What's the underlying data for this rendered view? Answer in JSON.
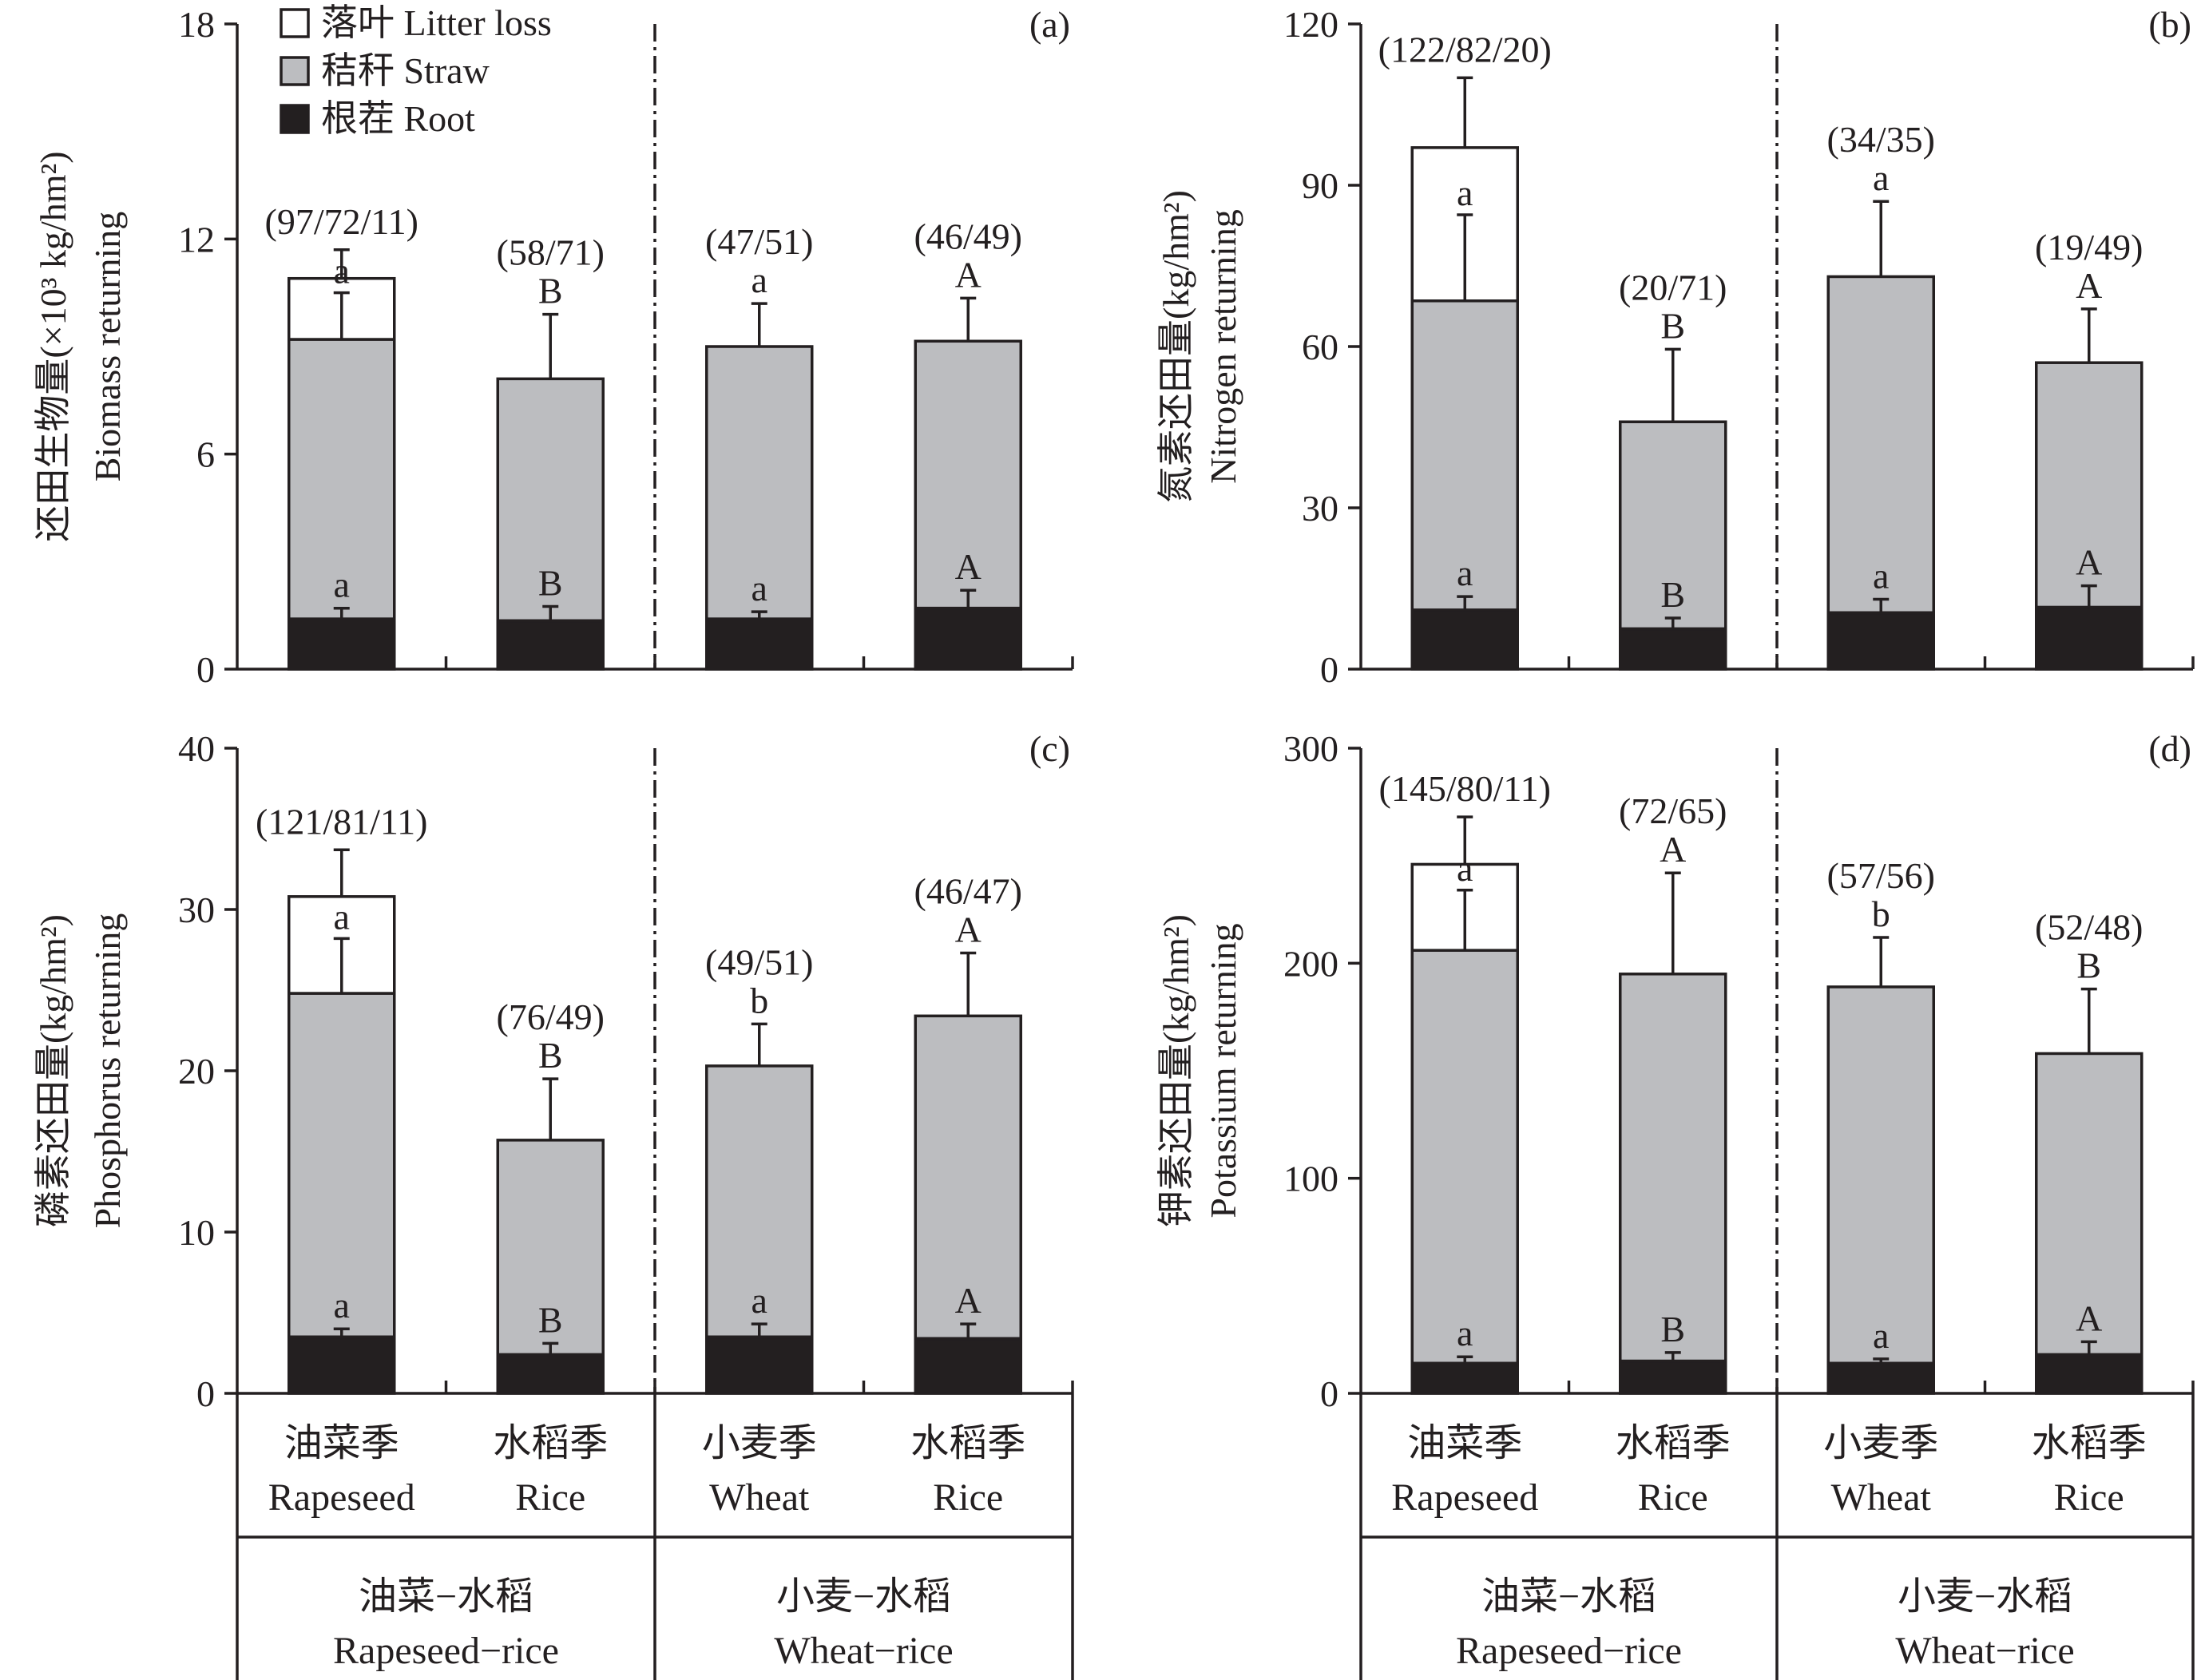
{
  "legend": [
    {
      "key": "litter",
      "label": "落叶 Litter loss",
      "color": "#ffffff"
    },
    {
      "key": "straw",
      "label": "秸秆 Straw",
      "color": "#bcbdc0"
    },
    {
      "key": "root",
      "label": "根茬 Root",
      "color": "#231f20"
    }
  ],
  "categories": [
    {
      "zh": "油菜季",
      "en": "Rapeseed"
    },
    {
      "zh": "水稻季",
      "en": "Rice"
    },
    {
      "zh": "小麦季",
      "en": "Wheat"
    },
    {
      "zh": "水稻季",
      "en": "Rice"
    }
  ],
  "groups": [
    {
      "zh": "油菜−水稻",
      "en": "Rapeseed−rice"
    },
    {
      "zh": "小麦−水稻",
      "en": "Wheat−rice"
    }
  ],
  "chart_data": [
    {
      "panel": "(a)",
      "type": "bar",
      "stacked": true,
      "ylabel_zh": "还田生物量",
      "ylabel_unit": "(×10³ kg/hm²)",
      "ylabel_en": "Biomass returning",
      "ylim": [
        0,
        18
      ],
      "yticks": [
        0,
        6,
        12,
        18
      ],
      "series": [
        {
          "name": "根茬 Root",
          "values": [
            1.4,
            1.35,
            1.4,
            1.7
          ],
          "errors": [
            0.3,
            0.4,
            0.2,
            0.5
          ]
        },
        {
          "name": "秸秆 Straw",
          "values": [
            7.8,
            6.75,
            7.6,
            7.45
          ]
        },
        {
          "name": "落叶 Litter loss",
          "values": [
            1.7,
            0,
            0,
            0
          ]
        }
      ],
      "straw_top_errors": [
        1.3,
        0,
        0,
        0
      ],
      "total_errors": [
        0.8,
        1.8,
        1.2,
        1.2
      ],
      "root_letters": [
        "a",
        "B",
        "a",
        "A"
      ],
      "straw_letters": [
        "a",
        "",
        "",
        ""
      ],
      "total_letters": [
        "",
        "B",
        "a",
        "A"
      ],
      "ratios": [
        "(97/72/11)",
        "(58/71)",
        "(47/51)",
        "(46/49)"
      ]
    },
    {
      "panel": "(b)",
      "type": "bar",
      "stacked": true,
      "ylabel_zh": "氮素还田量",
      "ylabel_unit": "(kg/hm²)",
      "ylabel_en": "Nitrogen returning",
      "ylim": [
        0,
        120
      ],
      "yticks": [
        0,
        30,
        60,
        90,
        120
      ],
      "series": [
        {
          "name": "根茬 Root",
          "values": [
            11,
            7.5,
            10.5,
            11.5
          ],
          "errors": [
            2.5,
            2,
            2.5,
            4
          ]
        },
        {
          "name": "秸秆 Straw",
          "values": [
            57.5,
            38.5,
            62.5,
            45.5
          ]
        },
        {
          "name": "落叶 Litter loss",
          "values": [
            28.5,
            0,
            0,
            0
          ]
        }
      ],
      "straw_top_errors": [
        16,
        0,
        0,
        0
      ],
      "total_errors": [
        13,
        13.5,
        14,
        10
      ],
      "root_letters": [
        "a",
        "B",
        "a",
        "A"
      ],
      "straw_letters": [
        "a",
        "",
        "",
        ""
      ],
      "total_letters": [
        "",
        "B",
        "a",
        "A"
      ],
      "ratios": [
        "(122/82/20)",
        "(20/71)",
        "(34/35)",
        "(19/49)"
      ]
    },
    {
      "panel": "(c)",
      "type": "bar",
      "stacked": true,
      "ylabel_zh": "磷素还田量",
      "ylabel_unit": "(kg/hm²)",
      "ylabel_en": "Phosphorus returning",
      "ylim": [
        0,
        40
      ],
      "yticks": [
        0,
        10,
        20,
        30,
        40
      ],
      "series": [
        {
          "name": "根茬 Root",
          "values": [
            3.5,
            2.4,
            3.5,
            3.4
          ],
          "errors": [
            0.5,
            0.7,
            0.8,
            0.9
          ]
        },
        {
          "name": "秸秆 Straw",
          "values": [
            21.3,
            13.3,
            16.8,
            20
          ]
        },
        {
          "name": "落叶 Litter loss",
          "values": [
            6,
            0,
            0,
            0
          ]
        }
      ],
      "straw_top_errors": [
        3.4,
        0,
        0,
        0
      ],
      "total_errors": [
        2.9,
        3.8,
        2.6,
        3.9
      ],
      "root_letters": [
        "a",
        "B",
        "a",
        "A"
      ],
      "straw_letters": [
        "a",
        "",
        "",
        ""
      ],
      "total_letters": [
        "",
        "B",
        "b",
        "A"
      ],
      "ratios": [
        "(121/81/11)",
        "(76/49)",
        "(49/51)",
        "(46/47)"
      ]
    },
    {
      "panel": "(d)",
      "type": "bar",
      "stacked": true,
      "ylabel_zh": "钾素还田量",
      "ylabel_unit": "(kg/hm²)",
      "ylabel_en": "Potassium returning",
      "ylim": [
        0,
        300
      ],
      "yticks": [
        0,
        100,
        200,
        300
      ],
      "series": [
        {
          "name": "根茬 Root",
          "values": [
            14,
            15,
            14,
            18
          ],
          "errors": [
            3,
            4,
            2,
            6
          ]
        },
        {
          "name": "秸秆 Straw",
          "values": [
            192,
            180,
            175,
            140
          ]
        },
        {
          "name": "落叶 Litter loss",
          "values": [
            40,
            0,
            0,
            0
          ]
        }
      ],
      "straw_top_errors": [
        28,
        0,
        0,
        0
      ],
      "total_errors": [
        22,
        47,
        23,
        30
      ],
      "root_letters": [
        "a",
        "B",
        "a",
        "A"
      ],
      "straw_letters": [
        "a",
        "",
        "",
        ""
      ],
      "total_letters": [
        "",
        "A",
        "b",
        "B"
      ],
      "ratios": [
        "(145/80/11)",
        "(72/65)",
        "(57/56)",
        "(52/48)"
      ]
    }
  ]
}
